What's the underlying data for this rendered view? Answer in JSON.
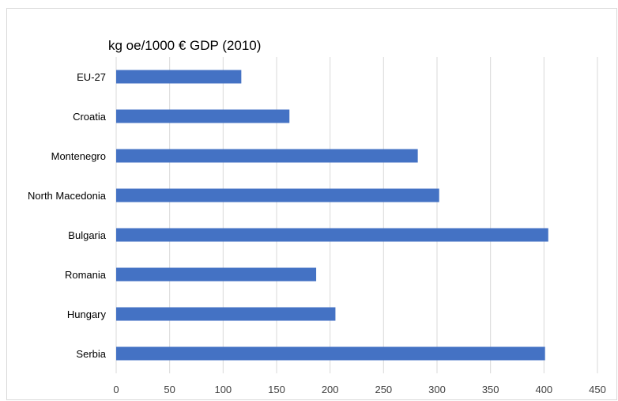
{
  "chart_data": {
    "type": "bar",
    "orientation": "horizontal",
    "title": "kg oe/1000 € GDP (2010)",
    "xlabel": "",
    "ylabel": "",
    "categories": [
      "EU-27",
      "Croatia",
      "Montenegro",
      "North Macedonia",
      "Bulgaria",
      "Romania",
      "Hungary",
      "Serbia"
    ],
    "values": [
      117,
      162,
      282,
      302,
      404,
      187,
      205,
      401
    ],
    "xlim": [
      0,
      450
    ],
    "xticks": [
      0,
      50,
      100,
      150,
      200,
      250,
      300,
      350,
      400,
      450
    ],
    "grid": "vertical",
    "legend": "none",
    "bar_color": "#4472C4"
  }
}
